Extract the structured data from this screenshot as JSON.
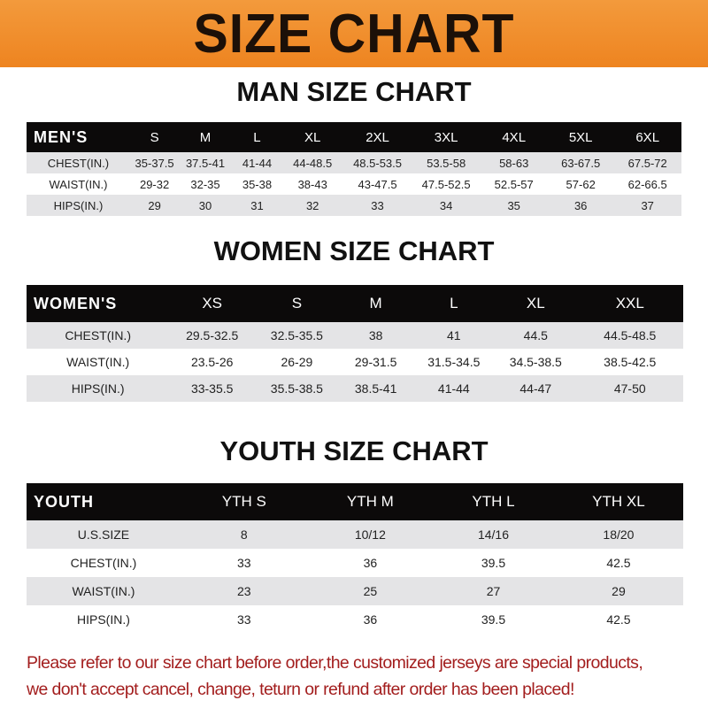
{
  "banner_title": "SIZE CHART",
  "men": {
    "title": "MAN SIZE CHART",
    "header": [
      "MEN'S",
      "S",
      "M",
      "L",
      "XL",
      "2XL",
      "3XL",
      "4XL",
      "5XL",
      "6XL"
    ],
    "rows": [
      [
        "CHEST(IN.)",
        "35-37.5",
        "37.5-41",
        "41-44",
        "44-48.5",
        "48.5-53.5",
        "53.5-58",
        "58-63",
        "63-67.5",
        "67.5-72"
      ],
      [
        "WAIST(IN.)",
        "29-32",
        "32-35",
        "35-38",
        "38-43",
        "43-47.5",
        "47.5-52.5",
        "52.5-57",
        "57-62",
        "62-66.5"
      ],
      [
        "HIPS(IN.)",
        "29",
        "30",
        "31",
        "32",
        "33",
        "34",
        "35",
        "36",
        "37"
      ]
    ]
  },
  "women": {
    "title": "WOMEN SIZE CHART",
    "header": [
      "WOMEN'S",
      "XS",
      "S",
      "M",
      "L",
      "XL",
      "XXL"
    ],
    "rows": [
      [
        "CHEST(IN.)",
        "29.5-32.5",
        "32.5-35.5",
        "38",
        "41",
        "44.5",
        "44.5-48.5"
      ],
      [
        "WAIST(IN.)",
        "23.5-26",
        "26-29",
        "29-31.5",
        "31.5-34.5",
        "34.5-38.5",
        "38.5-42.5"
      ],
      [
        "HIPS(IN.)",
        "33-35.5",
        "35.5-38.5",
        "38.5-41",
        "41-44",
        "44-47",
        "47-50"
      ]
    ]
  },
  "youth": {
    "title": "YOUTH SIZE CHART",
    "header": [
      "YOUTH",
      "YTH S",
      "YTH M",
      "YTH L",
      "YTH XL"
    ],
    "rows": [
      [
        "U.S.SIZE",
        "8",
        "10/12",
        "14/16",
        "18/20"
      ],
      [
        "CHEST(IN.)",
        "33",
        "36",
        "39.5",
        "42.5"
      ],
      [
        "WAIST(IN.)",
        "23",
        "25",
        "27",
        "29"
      ],
      [
        "HIPS(IN.)",
        "33",
        "36",
        "39.5",
        "42.5"
      ]
    ]
  },
  "note": {
    "line1": "Please refer to our size chart before order,the customized jerseys are special products,",
    "line2": "we don't accept cancel, change, teturn or refund after order has been placed!"
  },
  "colors": {
    "banner": "#f08a24",
    "header_row": "#0c0a0a",
    "note": "#a31e1e"
  }
}
